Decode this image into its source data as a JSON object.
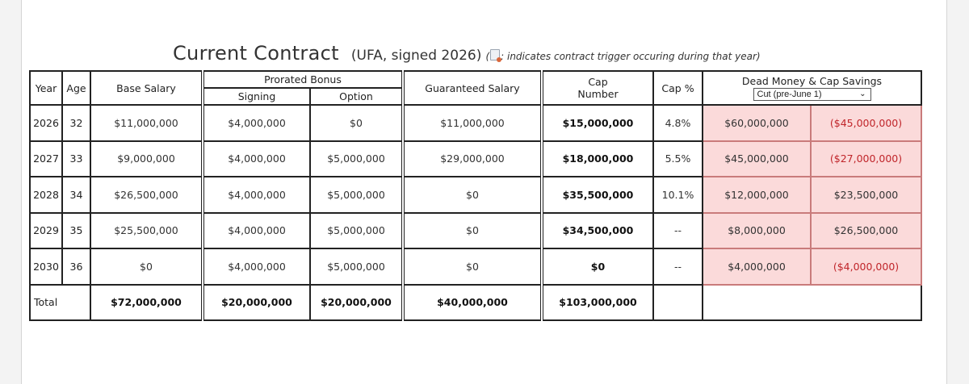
{
  "title": {
    "main": "Current Contract",
    "sub": "(UFA, signed 2026)",
    "note_open": "(",
    "note": ": indicates contract trigger occuring during that year)",
    "icon": "document-trigger-icon"
  },
  "headers": {
    "year": "Year",
    "age": "Age",
    "base_salary": "Base Salary",
    "prorated_bonus": "Prorated Bonus",
    "signing": "Signing",
    "option": "Option",
    "guaranteed_salary": "Guaranteed Salary",
    "cap_number_1": "Cap",
    "cap_number_2": "Number",
    "cap_pct": "Cap %",
    "dead_money": "Dead Money & Cap Savings",
    "cut_select": "Cut (pre-June 1)"
  },
  "rows": [
    {
      "year": "2026",
      "age": "32",
      "base": "$11,000,000",
      "signing": "$4,000,000",
      "option": "$0",
      "guaranteed": "$11,000,000",
      "cap": "$15,000,000",
      "cap_pct": "4.8%",
      "dead": "$60,000,000",
      "savings": "($45,000,000)"
    },
    {
      "year": "2027",
      "age": "33",
      "base": "$9,000,000",
      "signing": "$4,000,000",
      "option": "$5,000,000",
      "guaranteed": "$29,000,000",
      "cap": "$18,000,000",
      "cap_pct": "5.5%",
      "dead": "$45,000,000",
      "savings": "($27,000,000)"
    },
    {
      "year": "2028",
      "age": "34",
      "base": "$26,500,000",
      "signing": "$4,000,000",
      "option": "$5,000,000",
      "guaranteed": "$0",
      "cap": "$35,500,000",
      "cap_pct": "10.1%",
      "dead": "$12,000,000",
      "savings": "$23,500,000"
    },
    {
      "year": "2029",
      "age": "35",
      "base": "$25,500,000",
      "signing": "$4,000,000",
      "option": "$5,000,000",
      "guaranteed": "$0",
      "cap": "$34,500,000",
      "cap_pct": "--",
      "dead": "$8,000,000",
      "savings": "$26,500,000"
    },
    {
      "year": "2030",
      "age": "36",
      "base": "$0",
      "signing": "$4,000,000",
      "option": "$5,000,000",
      "guaranteed": "$0",
      "cap": "$0",
      "cap_pct": "--",
      "dead": "$4,000,000",
      "savings": "($4,000,000)"
    }
  ],
  "totals": {
    "label": "Total",
    "base": "$72,000,000",
    "signing": "$20,000,000",
    "option": "$20,000,000",
    "guaranteed": "$40,000,000",
    "cap": "$103,000,000"
  },
  "colors": {
    "negative": "#c0252a",
    "dead_money_bg": "#fbdada"
  }
}
